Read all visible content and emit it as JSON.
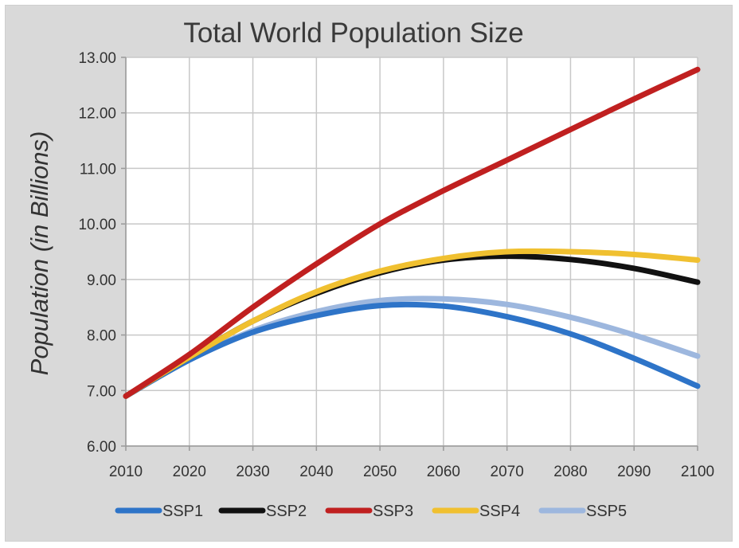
{
  "chart_data": {
    "type": "line",
    "title": "Total World Population Size",
    "xlabel": "",
    "ylabel": "Population (in Billions)",
    "xlim": [
      2010,
      2100
    ],
    "ylim": [
      6,
      13
    ],
    "grid": true,
    "legend_position": "bottom",
    "x_ticks": [
      "2010",
      "2020",
      "2030",
      "2040",
      "2050",
      "2060",
      "2070",
      "2080",
      "2090",
      "2100"
    ],
    "y_ticks": [
      "13.00",
      "12.00",
      "11.00",
      "10.00",
      "9.00",
      "8.00",
      "7.00",
      "6.00"
    ],
    "x": [
      2010,
      2020,
      2030,
      2040,
      2050,
      2060,
      2070,
      2080,
      2090,
      2100
    ],
    "series": [
      {
        "name": "SSP1",
        "color": "#2e74c8",
        "values": [
          6.9,
          7.55,
          8.05,
          8.35,
          8.53,
          8.52,
          8.33,
          8.02,
          7.58,
          7.08
        ]
      },
      {
        "name": "SSP2",
        "color": "#111111",
        "values": [
          6.9,
          7.6,
          8.25,
          8.75,
          9.12,
          9.35,
          9.42,
          9.36,
          9.2,
          8.95
        ]
      },
      {
        "name": "SSP3",
        "color": "#c02020",
        "values": [
          6.9,
          7.65,
          8.5,
          9.28,
          10.0,
          10.6,
          11.15,
          11.7,
          12.25,
          12.78
        ]
      },
      {
        "name": "SSP4",
        "color": "#f0c030",
        "values": [
          6.9,
          7.6,
          8.25,
          8.78,
          9.15,
          9.38,
          9.5,
          9.5,
          9.45,
          9.35
        ]
      },
      {
        "name": "SSP5",
        "color": "#9db7de",
        "values": [
          6.9,
          7.55,
          8.08,
          8.42,
          8.62,
          8.65,
          8.55,
          8.32,
          8.0,
          7.62
        ]
      }
    ]
  }
}
